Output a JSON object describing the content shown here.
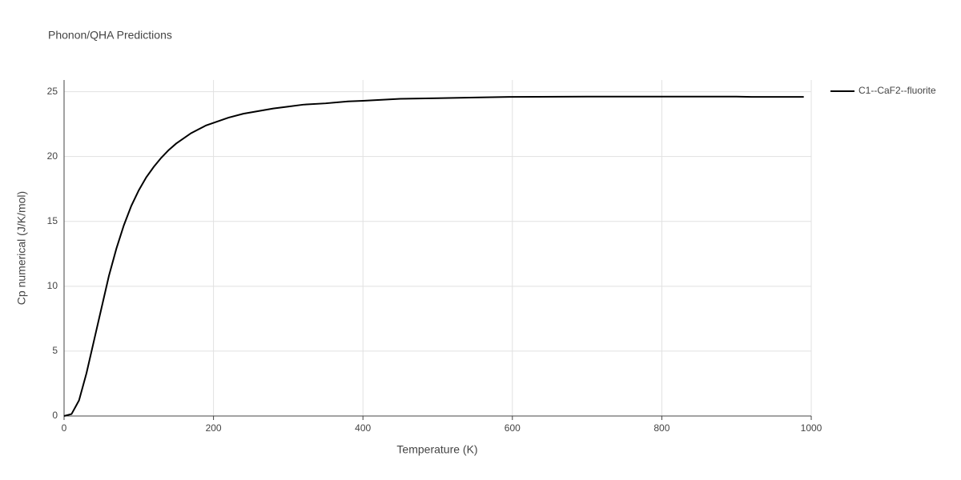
{
  "chart_data": {
    "type": "line",
    "title": "Phonon/QHA Predictions",
    "x_label": "Temperature (K)",
    "y_label": "Cp numerical (J/K/mol)",
    "x": [
      0,
      10,
      20,
      30,
      40,
      50,
      60,
      70,
      80,
      90,
      100,
      110,
      120,
      130,
      140,
      150,
      160,
      170,
      180,
      190,
      200,
      220,
      240,
      260,
      280,
      300,
      320,
      350,
      380,
      400,
      450,
      500,
      550,
      600,
      700,
      800,
      900,
      920,
      990
    ],
    "series": [
      {
        "name": "C1--CaF2--fluorite",
        "color": "#000000",
        "values": [
          0,
          0.15,
          1.2,
          3.3,
          5.8,
          8.3,
          10.8,
          12.9,
          14.7,
          16.2,
          17.4,
          18.4,
          19.2,
          19.9,
          20.5,
          21.0,
          21.4,
          21.8,
          22.1,
          22.4,
          22.6,
          23.0,
          23.3,
          23.5,
          23.7,
          23.85,
          24.0,
          24.1,
          24.25,
          24.3,
          24.45,
          24.5,
          24.55,
          24.6,
          24.62,
          24.62,
          24.62,
          24.6,
          24.6
        ]
      }
    ],
    "xlim": [
      0,
      1000
    ],
    "xticks": [
      0,
      200,
      400,
      600,
      800,
      1000
    ],
    "ylim": [
      0,
      25.9
    ],
    "yticks": [
      0,
      5,
      10,
      15,
      20,
      25
    ],
    "grid": true,
    "legend": "right"
  }
}
